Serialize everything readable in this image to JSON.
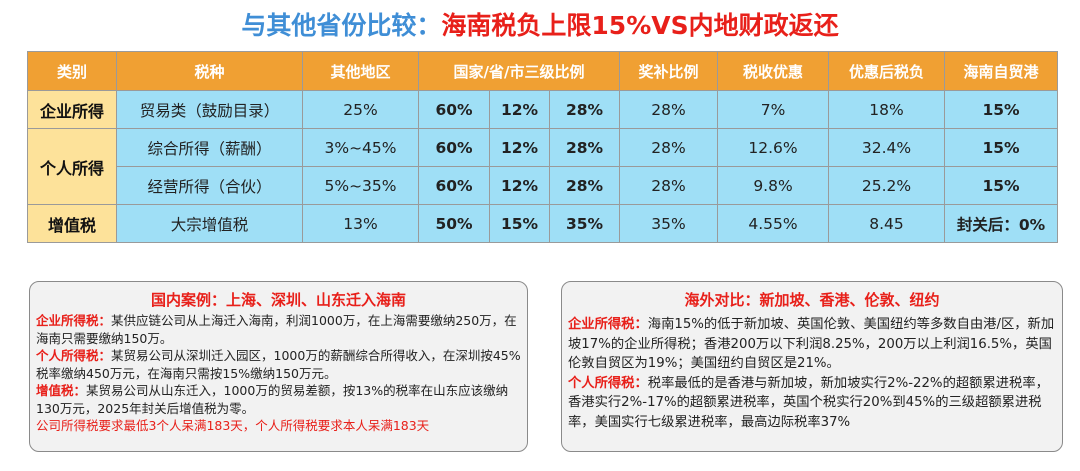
{
  "title": {
    "part1": "与其他省份比较：",
    "part2": "海南税负上限15%VS内地财政返还"
  },
  "table": {
    "headers": [
      "类别",
      "税种",
      "其他地区",
      "国家/省/市三级比例",
      "奖补比例",
      "税收优惠",
      "优惠后税负",
      "海南自贸港"
    ],
    "rows": [
      {
        "category": "企业所得",
        "tax": "贸易类（鼓励目录）",
        "other": "25%",
        "s1": "60%",
        "s2": "12%",
        "s3": "28%",
        "subsidy": "28%",
        "preference": "7%",
        "after": "18%",
        "hainan": "15%"
      },
      {
        "category": "个人所得",
        "tax": "综合所得（薪酬）",
        "other": "3%~45%",
        "s1": "60%",
        "s2": "12%",
        "s3": "28%",
        "subsidy": "28%",
        "preference": "12.6%",
        "after": "32.4%",
        "hainan": "15%"
      },
      {
        "tax": "经营所得（合伙）",
        "other": "5%~35%",
        "s1": "60%",
        "s2": "12%",
        "s3": "28%",
        "subsidy": "28%",
        "preference": "9.8%",
        "after": "25.2%",
        "hainan": "15%"
      },
      {
        "category": "增值税",
        "tax": "大宗增值税",
        "other": "13%",
        "s1": "50%",
        "s2": "15%",
        "s3": "35%",
        "subsidy": "35%",
        "preference": "4.55%",
        "after": "8.45",
        "hainan": "封关后：0%"
      }
    ]
  },
  "domestic": {
    "title": "国内案例：上海、深圳、山东迁入海南",
    "items": [
      {
        "label": "企业所得税：",
        "text": "某供应链公司从上海迁入海南，利润1000万，在上海需要缴纳250万，在海南只需要缴纳150万。"
      },
      {
        "label": "个人所得税：",
        "text": "某贸易公司从深圳迁入园区，1000万的薪酬综合所得收入，在深圳按45%税率缴纳450万元，在海南只需按15%缴纳150万元。"
      },
      {
        "label": "增值税：",
        "text": "某贸易公司从山东迁入，1000万的贸易差额，按13%的税率在山东应该缴纳130万元，2025年封关后增值税为零。"
      }
    ],
    "note": "公司所得税要求最低3个人呆满183天，个人所得税要求本人呆满183天"
  },
  "overseas": {
    "title": "海外对比：新加坡、香港、伦敦、纽约",
    "items": [
      {
        "label": "企业所得税：",
        "text": "海南15%的低于新加坡、英国伦敦、美国纽约等多数自由港/区，新加坡17%的企业所得税；香港200万以下利润8.25%，200万以上利润16.5%，英国伦敦自贸区为19%；美国纽约自贸区是21%。"
      },
      {
        "label": "个人所得税：",
        "text": "税率最低的是香港与新加坡，新加坡实行2%-22%的超额累进税率，香港实行2%-17%的超额累进税率，英国个税实行20%到45%的三级超额累进税率，美国实行七级累进税率，最高边际税率37%"
      }
    ]
  },
  "colors": {
    "header": "#f0a033",
    "category": "#fde29a",
    "cell": "#9fdff6",
    "accent_red": "#e8201a",
    "accent_blue": "#3f8ed6"
  }
}
